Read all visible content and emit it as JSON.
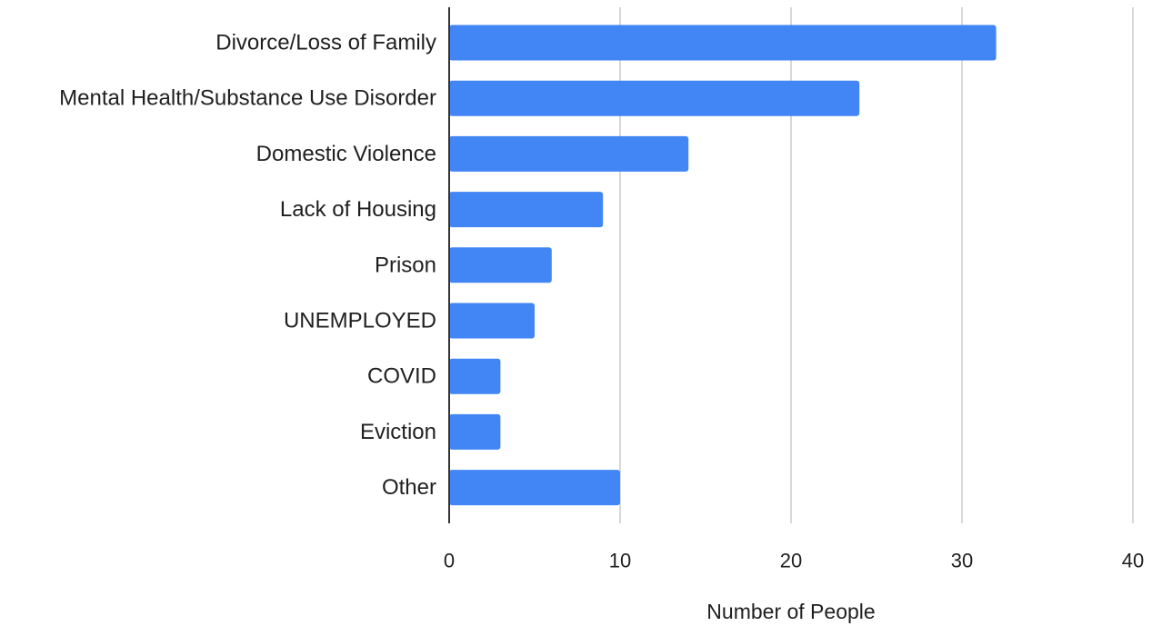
{
  "chart_data": {
    "type": "bar",
    "orientation": "horizontal",
    "categories": [
      "Divorce/Loss of Family",
      "Mental Health/Substance Use Disorder",
      "Domestic Violence",
      "Lack of Housing",
      "Prison",
      "UNEMPLOYED",
      "COVID",
      "Eviction",
      "Other"
    ],
    "values": [
      32,
      24,
      14,
      9,
      6,
      5,
      3,
      3,
      10
    ],
    "title": "",
    "xlabel": "Number of People",
    "ylabel": "",
    "xlim": [
      0,
      40
    ],
    "x_ticks": [
      0,
      10,
      20,
      30,
      40
    ],
    "x_tick_labels": [
      "0",
      "10",
      "20",
      "30",
      "40"
    ],
    "grid": "vertical",
    "legend": "none",
    "bar_color": "#4285f4"
  }
}
